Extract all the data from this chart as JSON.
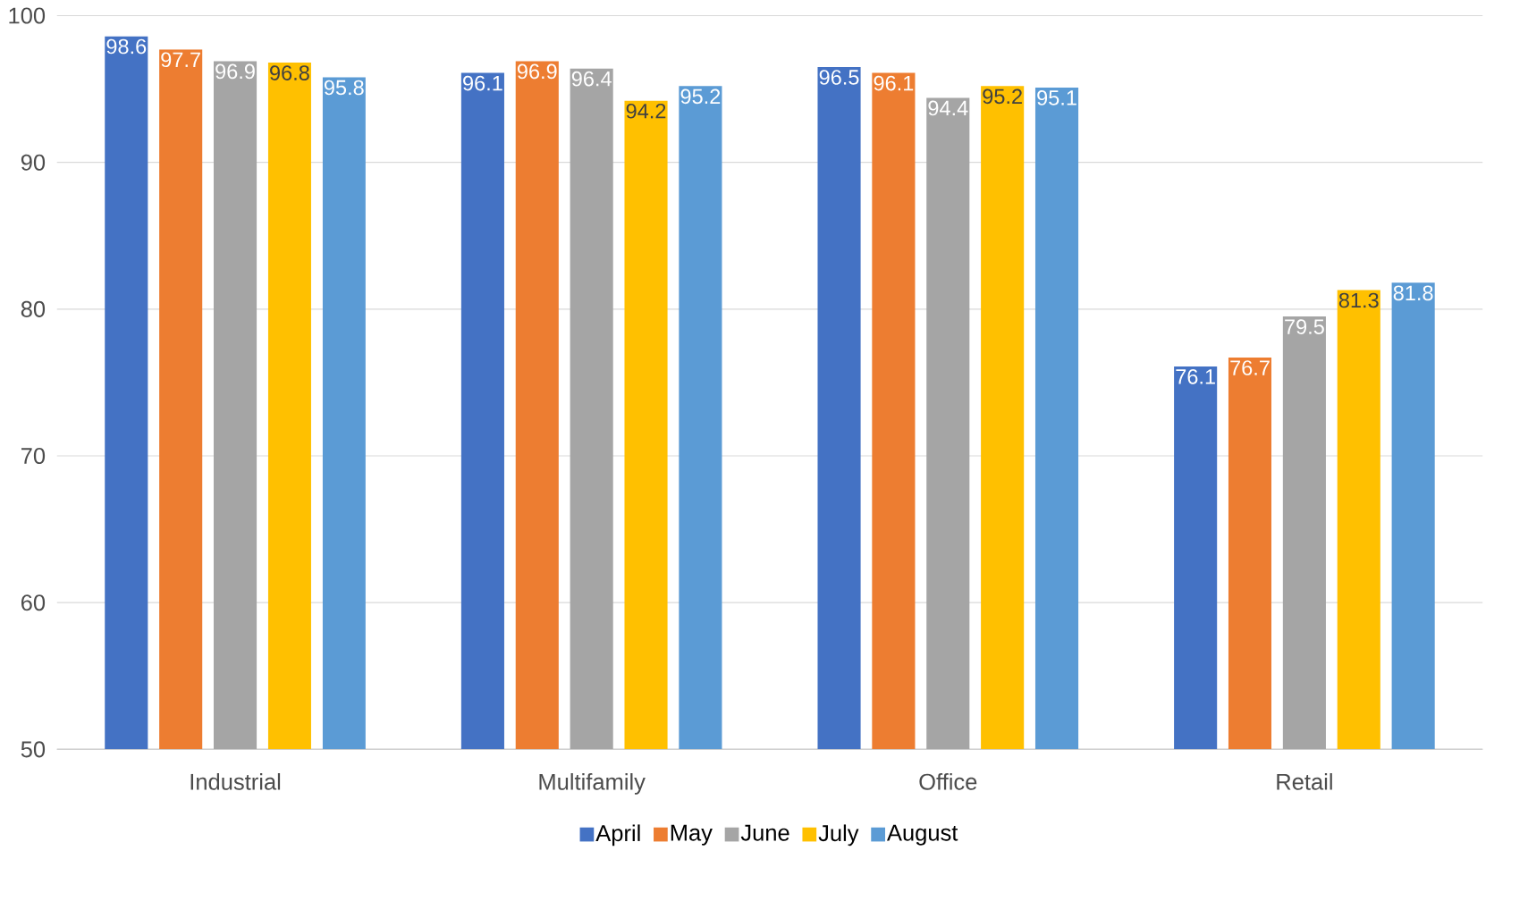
{
  "chart_data": {
    "type": "bar",
    "categories": [
      "Industrial",
      "Multifamily",
      "Office",
      "Retail"
    ],
    "series": [
      {
        "name": "April",
        "color": "#4472c4",
        "values": [
          98.6,
          96.1,
          96.5,
          76.1
        ]
      },
      {
        "name": "May",
        "color": "#ed7d31",
        "values": [
          97.7,
          96.9,
          96.1,
          76.7
        ]
      },
      {
        "name": "June",
        "color": "#a5a5a5",
        "values": [
          96.9,
          96.4,
          94.4,
          79.5
        ]
      },
      {
        "name": "July",
        "color": "#ffc000",
        "values": [
          96.8,
          94.2,
          95.2,
          81.3
        ]
      },
      {
        "name": "August",
        "color": "#5b9bd5",
        "values": [
          95.8,
          95.2,
          95.1,
          81.8
        ]
      }
    ],
    "ylim": [
      50,
      100
    ],
    "yticks": [
      50,
      60,
      70,
      80,
      90,
      100
    ],
    "grid": "y",
    "legend": "bottom",
    "data_labels": true
  }
}
